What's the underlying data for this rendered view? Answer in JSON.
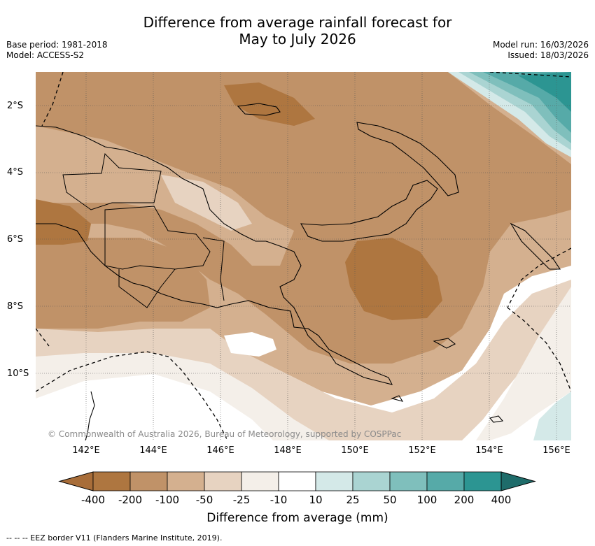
{
  "title": {
    "line1": "Difference from average rainfall forecast for",
    "line2": "May to July 2026"
  },
  "meta": {
    "base_period": "Base period: 1981-2018",
    "model": "Model: ACCESS-S2",
    "model_run": "Model run: 16/03/2026",
    "issued": "Issued: 18/03/2026"
  },
  "axes": {
    "lat_labels": [
      "2°S",
      "4°S",
      "6°S",
      "8°S",
      "10°S"
    ],
    "lon_labels": [
      "142°E",
      "144°E",
      "146°E",
      "148°E",
      "150°E",
      "152°E",
      "154°E",
      "156°E"
    ]
  },
  "credit": "© Commonwealth of Australia 2026, Bureau of Meteorology, supported by COSPPac",
  "colorbar": {
    "title": "Difference from average (mm)",
    "tick_labels": [
      "-400",
      "-200",
      "-100",
      "-50",
      "-25",
      "-10",
      "10",
      "25",
      "50",
      "100",
      "200",
      "400"
    ],
    "colors": [
      "#a86d39",
      "#ae7640",
      "#c09268",
      "#d4b08f",
      "#e7d3c1",
      "#f4efe9",
      "#ffffff",
      "#d4e9e8",
      "#aad4d2",
      "#7fbfbc",
      "#56aaa8",
      "#2c9592",
      "#1e6c6a"
    ]
  },
  "legend": {
    "eez": "-- -- -- EEZ border V11 (Flanders Marine Institute, 2019)."
  }
}
